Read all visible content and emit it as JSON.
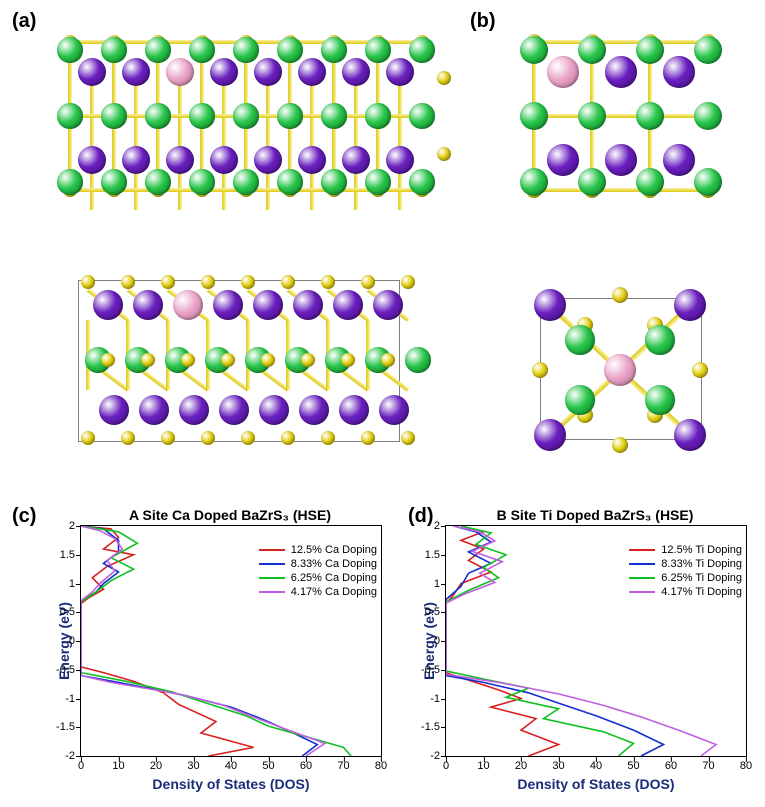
{
  "labels": {
    "a": "(a)",
    "b": "(b)",
    "c": "(c)",
    "d": "(d)"
  },
  "chart_axis": {
    "y_label": "Energy (eV)",
    "x_label": "Density of States (DOS)",
    "y_ticks": [
      -2,
      -1.5,
      -1,
      -0.5,
      0,
      0.5,
      1,
      1.5,
      2
    ],
    "x_ticks": [
      0,
      10,
      20,
      30,
      40,
      50,
      60,
      70,
      80
    ],
    "y_range": [
      -2,
      2
    ],
    "x_range": [
      0,
      80
    ]
  },
  "charts": {
    "c": {
      "title": "A Site Ca Doped BaZrS₃ (HSE)",
      "legend_item": "Ca Doping"
    },
    "d": {
      "title": "B Site Ti Doped BaZrS₃ (HSE)",
      "legend_item": "Ti Doping"
    }
  },
  "series_colors": {
    "s1": "#d92020",
    "s2": "#1030d0",
    "s3": "#10c020",
    "s4": "#c060e0"
  },
  "legend_percents": [
    "12.5%",
    "8.33%",
    "6.25%",
    "4.17%"
  ],
  "atom_colors": {
    "Ba": {
      "fill": "#29c64b",
      "stroke": "#0a7a24"
    },
    "Zr": {
      "fill": "#6a1fbf",
      "stroke": "#3f0e78"
    },
    "S": {
      "fill": "#e6d217",
      "stroke": "#a39500"
    },
    "Dop": {
      "fill": "#eaa5c8",
      "stroke": "#b46e94"
    }
  },
  "atom_radii": {
    "Ba": 14,
    "Zr": 15,
    "S": 8,
    "Dop": 15
  },
  "bond_color": "#d9c814",
  "chart_series": {
    "c": {
      "s1": [
        [
          0,
          2
        ],
        [
          8,
          1.95
        ],
        [
          10,
          1.8
        ],
        [
          6,
          1.6
        ],
        [
          14,
          1.5
        ],
        [
          7,
          1.3
        ],
        [
          3,
          1.1
        ],
        [
          6,
          0.9
        ],
        [
          2,
          0.75
        ],
        [
          0,
          0.65
        ],
        [
          0,
          -0.45
        ],
        [
          6,
          -0.55
        ],
        [
          14,
          -0.7
        ],
        [
          22,
          -0.9
        ],
        [
          26,
          -1.1
        ],
        [
          36,
          -1.4
        ],
        [
          32,
          -1.6
        ],
        [
          46,
          -1.85
        ],
        [
          34,
          -2
        ]
      ],
      "s2": [
        [
          0,
          2
        ],
        [
          6,
          1.95
        ],
        [
          10,
          1.75
        ],
        [
          10,
          1.55
        ],
        [
          6,
          1.35
        ],
        [
          10,
          1.2
        ],
        [
          6,
          1.0
        ],
        [
          4,
          0.85
        ],
        [
          0,
          0.7
        ],
        [
          0,
          -0.6
        ],
        [
          10,
          -0.72
        ],
        [
          28,
          -0.95
        ],
        [
          40,
          -1.15
        ],
        [
          48,
          -1.35
        ],
        [
          55,
          -1.55
        ],
        [
          63,
          -1.8
        ],
        [
          59,
          -2
        ]
      ],
      "s3": [
        [
          0,
          2
        ],
        [
          10,
          1.9
        ],
        [
          15,
          1.7
        ],
        [
          8,
          1.45
        ],
        [
          14,
          1.25
        ],
        [
          8,
          1.05
        ],
        [
          4,
          0.85
        ],
        [
          0,
          0.68
        ],
        [
          0,
          -0.55
        ],
        [
          12,
          -0.7
        ],
        [
          24,
          -0.88
        ],
        [
          32,
          -1.05
        ],
        [
          44,
          -1.3
        ],
        [
          50,
          -1.48
        ],
        [
          62,
          -1.7
        ],
        [
          70,
          -1.85
        ],
        [
          72,
          -2
        ]
      ],
      "s4": [
        [
          0,
          2
        ],
        [
          5,
          1.92
        ],
        [
          9,
          1.78
        ],
        [
          11,
          1.6
        ],
        [
          7,
          1.4
        ],
        [
          9,
          1.22
        ],
        [
          5,
          1.0
        ],
        [
          3,
          0.85
        ],
        [
          0,
          0.7
        ],
        [
          0,
          -0.6
        ],
        [
          8,
          -0.72
        ],
        [
          26,
          -0.92
        ],
        [
          38,
          -1.12
        ],
        [
          46,
          -1.32
        ],
        [
          54,
          -1.52
        ],
        [
          65,
          -1.78
        ],
        [
          60,
          -2
        ]
      ]
    },
    "d": {
      "s1": [
        [
          4,
          2
        ],
        [
          10,
          1.9
        ],
        [
          4,
          1.75
        ],
        [
          10,
          1.6
        ],
        [
          6,
          1.4
        ],
        [
          12,
          1.2
        ],
        [
          4,
          1.0
        ],
        [
          2,
          0.8
        ],
        [
          0,
          0.65
        ],
        [
          0,
          -0.55
        ],
        [
          6,
          -0.68
        ],
        [
          14,
          -0.85
        ],
        [
          20,
          -1.0
        ],
        [
          12,
          -1.15
        ],
        [
          24,
          -1.35
        ],
        [
          20,
          -1.55
        ],
        [
          30,
          -1.8
        ],
        [
          22,
          -2
        ]
      ],
      "s2": [
        [
          2,
          2
        ],
        [
          8,
          1.9
        ],
        [
          12,
          1.72
        ],
        [
          6,
          1.55
        ],
        [
          12,
          1.35
        ],
        [
          6,
          1.18
        ],
        [
          4,
          0.95
        ],
        [
          0,
          0.72
        ],
        [
          0,
          -0.6
        ],
        [
          10,
          -0.72
        ],
        [
          22,
          -0.9
        ],
        [
          30,
          -1.08
        ],
        [
          40,
          -1.3
        ],
        [
          50,
          -1.55
        ],
        [
          58,
          -1.8
        ],
        [
          52,
          -2
        ]
      ],
      "s3": [
        [
          4,
          2
        ],
        [
          12,
          1.88
        ],
        [
          8,
          1.68
        ],
        [
          16,
          1.5
        ],
        [
          10,
          1.28
        ],
        [
          14,
          1.1
        ],
        [
          6,
          0.88
        ],
        [
          0,
          0.68
        ],
        [
          0,
          -0.52
        ],
        [
          10,
          -0.66
        ],
        [
          22,
          -0.82
        ],
        [
          16,
          -0.98
        ],
        [
          30,
          -1.18
        ],
        [
          26,
          -1.35
        ],
        [
          42,
          -1.58
        ],
        [
          50,
          -1.78
        ],
        [
          46,
          -2
        ]
      ],
      "s4": [
        [
          2,
          2
        ],
        [
          9,
          1.9
        ],
        [
          13,
          1.74
        ],
        [
          7,
          1.56
        ],
        [
          15,
          1.38
        ],
        [
          9,
          1.18
        ],
        [
          13,
          1.02
        ],
        [
          5,
          0.82
        ],
        [
          0,
          0.66
        ],
        [
          0,
          -0.58
        ],
        [
          14,
          -0.72
        ],
        [
          30,
          -0.92
        ],
        [
          42,
          -1.12
        ],
        [
          52,
          -1.32
        ],
        [
          62,
          -1.55
        ],
        [
          72,
          -1.8
        ],
        [
          68,
          -2
        ]
      ]
    }
  },
  "structure_box_color": "#808080"
}
